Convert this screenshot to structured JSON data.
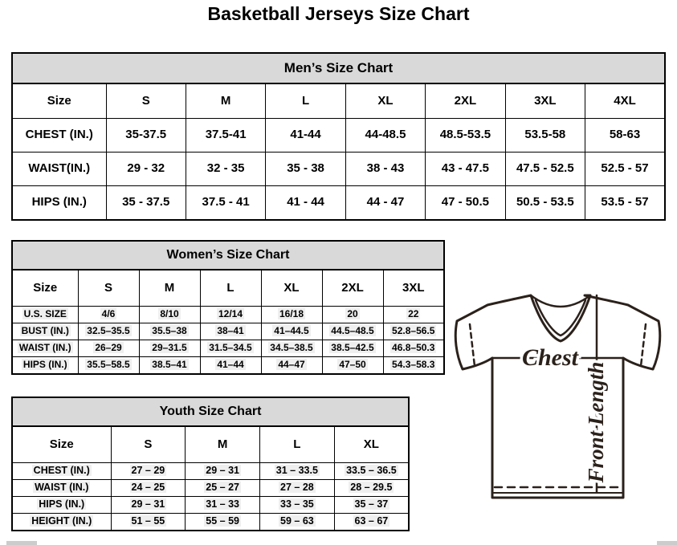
{
  "page": {
    "title": "Basketball Jerseys Size Chart"
  },
  "mens_chart": {
    "title": "Men’s Size Chart",
    "columns": [
      "Size",
      "S",
      "M",
      "L",
      "XL",
      "2XL",
      "3XL",
      "4XL"
    ],
    "rows": [
      {
        "label": "CHEST (IN.)",
        "values": [
          "35-37.5",
          "37.5-41",
          "41-44",
          "44-48.5",
          "48.5-53.5",
          "53.5-58",
          "58-63"
        ]
      },
      {
        "label": "WAIST(IN.)",
        "values": [
          "29 - 32",
          "32 - 35",
          "35 - 38",
          "38 - 43",
          "43 - 47.5",
          "47.5 - 52.5",
          "52.5 - 57"
        ]
      },
      {
        "label": "HIPS (IN.)",
        "values": [
          "35 - 37.5",
          "37.5 - 41",
          "41 - 44",
          "44 - 47",
          "47 - 50.5",
          "50.5 - 53.5",
          "53.5 - 57"
        ]
      }
    ]
  },
  "womens_chart": {
    "title": "Women’s Size Chart",
    "columns": [
      "Size",
      "S",
      "M",
      "L",
      "XL",
      "2XL",
      "3XL"
    ],
    "rows": [
      {
        "label": "U.S. SIZE",
        "values": [
          "4/6",
          "8/10",
          "12/14",
          "16/18",
          "20",
          "22"
        ]
      },
      {
        "label": "BUST (IN.)",
        "values": [
          "32.5–35.5",
          "35.5–38",
          "38–41",
          "41–44.5",
          "44.5–48.5",
          "52.8–56.5"
        ]
      },
      {
        "label": "WAIST (IN.)",
        "values": [
          "26–29",
          "29–31.5",
          "31.5–34.5",
          "34.5–38.5",
          "38.5–42.5",
          "46.8–50.3"
        ]
      },
      {
        "label": "HIPS (IN.)",
        "values": [
          "35.5–58.5",
          "38.5–41",
          "41–44",
          "44–47",
          "47–50",
          "54.3–58.3"
        ]
      }
    ]
  },
  "youth_chart": {
    "title": "Youth Size Chart",
    "columns": [
      "Size",
      "S",
      "M",
      "L",
      "XL"
    ],
    "rows": [
      {
        "label": "CHEST (IN.)",
        "values": [
          "27 – 29",
          "29 – 31",
          "31 – 33.5",
          "33.5 – 36.5"
        ]
      },
      {
        "label": "WAIST (IN.)",
        "values": [
          "24 – 25",
          "25 – 27",
          "27 – 28",
          "28 – 29.5"
        ]
      },
      {
        "label": "HIPS (IN.)",
        "values": [
          "29 – 31",
          "31 – 33",
          "33 – 35",
          "35 – 37"
        ]
      },
      {
        "label": "HEIGHT (IN.)",
        "values": [
          "51 – 55",
          "55 – 59",
          "59 – 63",
          "63 – 67"
        ]
      }
    ]
  },
  "diagram": {
    "chest_label": "Chest",
    "front_length_label": "Front Length"
  },
  "colors": {
    "table_header_bg": "#d9d9d9",
    "table_border": "#000000",
    "label_highlight": "#efefef",
    "diagram_stroke": "#2b211b"
  }
}
